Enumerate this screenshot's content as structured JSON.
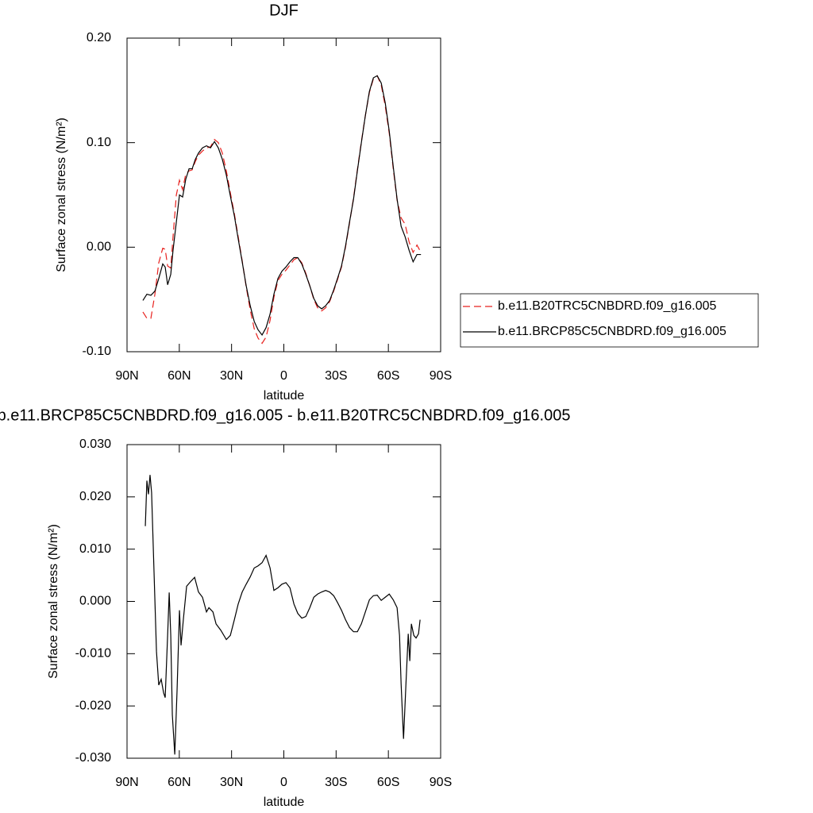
{
  "chart_data": [
    {
      "type": "line",
      "title": "DJF",
      "x_label": "latitude",
      "y_label": "Surface zonal stress (N/m²)",
      "x": [
        80.9,
        78.6,
        76.3,
        74.0,
        71.8,
        69.5,
        68.1,
        66.7,
        64.9,
        63.6,
        61.7,
        59.9,
        58.1,
        56.3,
        54.4,
        52.6,
        50.8,
        49.0,
        46.7,
        44.4,
        42.1,
        39.8,
        37.6,
        35.3,
        33.0,
        30.7,
        28.4,
        26.2,
        23.9,
        21.6,
        19.3,
        17.0,
        14.8,
        12.5,
        10.2,
        7.9,
        5.7,
        3.4,
        1.1,
        -1.2,
        -3.5,
        -5.8,
        -8.0,
        -10.3,
        -12.6,
        -14.9,
        -17.2,
        -19.4,
        -21.7,
        -24.0,
        -26.3,
        -28.6,
        -30.8,
        -33.1,
        -35.4,
        -37.7,
        -40.0,
        -42.2,
        -44.5,
        -46.8,
        -49.1,
        -51.4,
        -53.6,
        -55.9,
        -58.2,
        -60.5,
        -62.8,
        -65.0,
        -67.3,
        -69.6,
        -71.9,
        -74.2,
        -76.4,
        -78.7
      ],
      "series": [
        {
          "name": "b.e11.B20TRC5CNBDRD.f09_g16.005",
          "color": "#e8211e",
          "line_style": "dashed",
          "values": [
            -0.062,
            -0.068,
            -0.068,
            -0.045,
            -0.015,
            -0.001,
            -0.002,
            -0.018,
            -0.02,
            0.01,
            0.05,
            0.064,
            0.055,
            0.07,
            0.073,
            0.074,
            0.082,
            0.088,
            0.092,
            0.095,
            0.096,
            0.103,
            0.1,
            0.09,
            0.073,
            0.052,
            0.032,
            0.01,
            -0.013,
            -0.038,
            -0.06,
            -0.078,
            -0.087,
            -0.092,
            -0.086,
            -0.07,
            -0.048,
            -0.032,
            -0.026,
            -0.022,
            -0.017,
            -0.012,
            -0.01,
            -0.015,
            -0.025,
            -0.037,
            -0.05,
            -0.058,
            -0.061,
            -0.058,
            -0.052,
            -0.042,
            -0.031,
            -0.019,
            0.0,
            0.023,
            0.047,
            0.074,
            0.101,
            0.126,
            0.148,
            0.161,
            0.164,
            0.155,
            0.135,
            0.109,
            0.075,
            0.045,
            0.028,
            0.022,
            0.005,
            -0.005,
            0.002,
            -0.005
          ]
        },
        {
          "name": "b.e11.BRCP85C5CNBDRD.f09_g16.005",
          "color": "#000000",
          "line_style": "solid",
          "values": [
            -0.051,
            -0.045,
            -0.046,
            -0.042,
            -0.03,
            -0.016,
            -0.019,
            -0.036,
            -0.026,
            -0.003,
            0.024,
            0.05,
            0.048,
            0.065,
            0.075,
            0.075,
            0.084,
            0.09,
            0.095,
            0.097,
            0.095,
            0.101,
            0.095,
            0.084,
            0.069,
            0.049,
            0.03,
            0.008,
            -0.014,
            -0.037,
            -0.056,
            -0.071,
            -0.079,
            -0.084,
            -0.077,
            -0.064,
            -0.045,
            -0.03,
            -0.023,
            -0.019,
            -0.014,
            -0.01,
            -0.01,
            -0.016,
            -0.026,
            -0.037,
            -0.049,
            -0.056,
            -0.059,
            -0.056,
            -0.051,
            -0.041,
            -0.03,
            -0.018,
            0.001,
            0.024,
            0.046,
            0.073,
            0.1,
            0.126,
            0.149,
            0.162,
            0.164,
            0.157,
            0.138,
            0.111,
            0.077,
            0.046,
            0.02,
            0.01,
            -0.003,
            -0.014,
            -0.007,
            -0.007
          ]
        }
      ],
      "xlim": [
        90,
        -90
      ],
      "xticks": [
        {
          "value": 90,
          "label": "90N"
        },
        {
          "value": 60,
          "label": "60N"
        },
        {
          "value": 30,
          "label": "30N"
        },
        0,
        {
          "value": -30,
          "label": "30S"
        },
        {
          "value": -60,
          "label": "60S"
        },
        {
          "value": -90,
          "label": "90S"
        }
      ],
      "ylim": [
        -0.1,
        0.2
      ],
      "yticks": [
        {
          "value": 0.2,
          "label": "0.20"
        },
        {
          "value": 0.1,
          "label": "0.10"
        },
        {
          "value": 0,
          "label": "0.00"
        },
        {
          "value": -0.1,
          "label": "-0.10"
        }
      ],
      "legend": "right"
    },
    {
      "type": "line",
      "title": "b.e11.BRCP85C5CNBDRD.f09_g16.005 - b.e11.B20TRC5CNBDRD.f09_g16.005",
      "x_label": "latitude",
      "y_label": "Surface zonal stress (N/m²)",
      "x": [
        79.5,
        78.6,
        77.7,
        76.8,
        75.9,
        74.5,
        73.1,
        71.8,
        70.4,
        69.0,
        68.1,
        66.7,
        65.8,
        64.9,
        64.0,
        62.6,
        61.3,
        59.9,
        59.0,
        57.6,
        55.8,
        53.5,
        51.2,
        49.0,
        46.7,
        44.4,
        43.0,
        40.7,
        38.9,
        36.2,
        33.0,
        30.7,
        28.4,
        26.2,
        23.9,
        21.6,
        19.3,
        17.0,
        14.8,
        12.5,
        10.2,
        7.9,
        5.7,
        3.4,
        1.1,
        -1.2,
        -3.5,
        -5.8,
        -8.0,
        -10.3,
        -12.6,
        -14.9,
        -17.2,
        -19.4,
        -21.7,
        -24.0,
        -26.3,
        -28.6,
        -30.8,
        -33.1,
        -35.4,
        -37.7,
        -40.0,
        -42.2,
        -44.5,
        -46.8,
        -49.1,
        -51.4,
        -53.6,
        -55.9,
        -58.2,
        -60.5,
        -62.8,
        -65.0,
        -66.4,
        -67.3,
        -68.7,
        -70.1,
        -71.4,
        -72.3,
        -73.2,
        -74.6,
        -75.9,
        -77.3,
        -78.2
      ],
      "series": [
        {
          "color": "#000000",
          "line_style": "solid",
          "values": [
            0.0144,
            0.0231,
            0.0205,
            0.0242,
            0.0208,
            0.0056,
            -0.0096,
            -0.016,
            -0.0149,
            -0.0175,
            -0.0184,
            -0.0065,
            0.0017,
            -0.0065,
            -0.0217,
            -0.0293,
            -0.0172,
            -0.0017,
            -0.0084,
            -0.0032,
            0.0029,
            0.0038,
            0.0046,
            0.0018,
            0.0008,
            -0.002,
            -0.0012,
            -0.002,
            -0.0043,
            -0.0055,
            -0.0073,
            -0.0065,
            -0.0035,
            -0.0005,
            0.0018,
            0.0033,
            0.0047,
            0.0064,
            0.0068,
            0.0074,
            0.0088,
            0.0064,
            0.0021,
            0.0026,
            0.0033,
            0.0036,
            0.0026,
            -0.0005,
            -0.0023,
            -0.0032,
            -0.0029,
            -0.0012,
            0.0008,
            0.0014,
            0.0018,
            0.0021,
            0.0018,
            0.0011,
            -0.0002,
            -0.0017,
            -0.0035,
            -0.005,
            -0.0058,
            -0.0058,
            -0.0043,
            -0.002,
            0.0003,
            0.0011,
            0.0012,
            0.0002,
            0.0008,
            0.0014,
            0.0003,
            -0.0012,
            -0.0065,
            -0.0157,
            -0.0263,
            -0.0157,
            -0.0062,
            -0.0114,
            -0.0043,
            -0.0065,
            -0.007,
            -0.0062,
            -0.0035
          ]
        }
      ],
      "xlim": [
        90,
        -90
      ],
      "xticks": [
        {
          "value": 90,
          "label": "90N"
        },
        {
          "value": 60,
          "label": "60N"
        },
        {
          "value": 30,
          "label": "30N"
        },
        0,
        {
          "value": -30,
          "label": "30S"
        },
        {
          "value": -60,
          "label": "60S"
        },
        {
          "value": -90,
          "label": "90S"
        }
      ],
      "ylim": [
        -0.03,
        0.03
      ],
      "yticks": [
        {
          "value": 0.03,
          "label": "0.030"
        },
        {
          "value": 0.02,
          "label": "0.020"
        },
        {
          "value": 0.01,
          "label": "0.010"
        },
        {
          "value": 0,
          "label": "0.000"
        },
        {
          "value": -0.01,
          "label": "-0.010"
        },
        {
          "value": -0.02,
          "label": "-0.020"
        },
        {
          "value": -0.03,
          "label": "-0.030"
        }
      ]
    }
  ]
}
